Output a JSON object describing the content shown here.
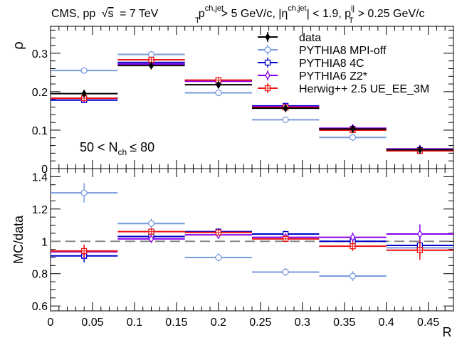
{
  "header": {
    "left": "CMS, pp",
    "sqrt_s": "s",
    "energy": "= 7 TeV",
    "cuts": {
      "pt_jet": "p",
      "pt_jet_sup": "ch,jet",
      "pt_jet_sub": "T",
      "pt_jet_cut": "> 5 GeV/c, |η",
      "eta_sup": "ch,jet",
      "eta_cut": "| < 1.9, p",
      "pt_ij_sup": "ij",
      "pt_ij_sub": "T",
      "pt_ij_cut": "> 0.25 GeV/c"
    }
  },
  "chart_data": [
    {
      "type": "scatter",
      "panel": "top",
      "ylabel": "ρ",
      "ylim": [
        0,
        0.37
      ],
      "yticks": [
        "0",
        "0.1",
        "0.2",
        "0.3"
      ],
      "annotation": {
        "prefix": "50 < N",
        "sub": "ch",
        "suffix": "≤ 80"
      },
      "x_bins": [
        [
          0,
          0.08
        ],
        [
          0.08,
          0.16
        ],
        [
          0.16,
          0.24
        ],
        [
          0.24,
          0.32
        ],
        [
          0.32,
          0.4
        ],
        [
          0.4,
          0.48
        ]
      ],
      "x": [
        0.04,
        0.12,
        0.2,
        0.28,
        0.36,
        0.44
      ],
      "legend_position": "top-right",
      "series": [
        {
          "name": "data",
          "color": "#000000",
          "marker": "diamond-filled",
          "values": [
            0.195,
            0.268,
            0.218,
            0.157,
            0.103,
            0.049
          ],
          "errors": [
            0.008,
            0.005,
            0.005,
            0.004,
            0.003,
            0.003
          ]
        },
        {
          "name": "PYTHIA8 MPI-off",
          "color": "#7799dd",
          "marker": "circle-open",
          "values": [
            0.255,
            0.297,
            0.197,
            0.127,
            0.081,
            0.047
          ],
          "errors": [
            0.003,
            0.003,
            0.003,
            0.002,
            0.002,
            0.002
          ]
        },
        {
          "name": "PYTHIA8 4C",
          "color": "#0000cc",
          "marker": "square-open",
          "values": [
            0.178,
            0.276,
            0.228,
            0.163,
            0.103,
            0.048
          ],
          "errors": [
            0.003,
            0.003,
            0.003,
            0.002,
            0.002,
            0.002
          ]
        },
        {
          "name": "PYTHIA6 Z2*",
          "color": "#8800ee",
          "marker": "diamond-open",
          "values": [
            0.183,
            0.272,
            0.227,
            0.161,
            0.105,
            0.051
          ],
          "errors": [
            0.003,
            0.003,
            0.003,
            0.002,
            0.002,
            0.002
          ]
        },
        {
          "name": "Herwig++ 2.5  UE_EE_3M",
          "color": "#ee1111",
          "marker": "square-cross",
          "values": [
            0.183,
            0.283,
            0.23,
            0.159,
            0.1,
            0.046
          ],
          "errors": [
            0.003,
            0.003,
            0.003,
            0.002,
            0.002,
            0.002
          ]
        }
      ]
    },
    {
      "type": "scatter",
      "panel": "bottom",
      "xlabel": "R",
      "ylabel": "MC/data",
      "xlim": [
        0,
        0.48
      ],
      "ylim": [
        0.57,
        1.45
      ],
      "xticks": [
        "0",
        "0.05",
        "0.1",
        "0.15",
        "0.2",
        "0.25",
        "0.3",
        "0.35",
        "0.4",
        "0.45"
      ],
      "yticks": [
        "0.6",
        "0.8",
        "1",
        "1.2",
        "1.4"
      ],
      "reference_line": 1,
      "x_bins": [
        [
          0,
          0.08
        ],
        [
          0.08,
          0.16
        ],
        [
          0.16,
          0.24
        ],
        [
          0.24,
          0.32
        ],
        [
          0.32,
          0.4
        ],
        [
          0.4,
          0.48
        ]
      ],
      "x": [
        0.04,
        0.12,
        0.2,
        0.28,
        0.36,
        0.44
      ],
      "series": [
        {
          "name": "PYTHIA8 MPI-off",
          "color": "#7799dd",
          "marker": "circle-open",
          "values": [
            1.3,
            1.11,
            0.9,
            0.81,
            0.785,
            0.96
          ],
          "errors": [
            0.06,
            0.03,
            0.025,
            0.025,
            0.03,
            0.06
          ]
        },
        {
          "name": "PYTHIA8 4C",
          "color": "#0000cc",
          "marker": "square-open",
          "values": [
            0.91,
            1.03,
            1.06,
            1.045,
            1.0,
            0.975
          ],
          "errors": [
            0.04,
            0.02,
            0.02,
            0.02,
            0.03,
            0.06
          ]
        },
        {
          "name": "PYTHIA6 Z2*",
          "color": "#8800ee",
          "marker": "diamond-open",
          "values": [
            0.935,
            1.015,
            1.04,
            1.025,
            1.025,
            1.045
          ],
          "errors": [
            0.04,
            0.02,
            0.02,
            0.02,
            0.03,
            0.06
          ]
        },
        {
          "name": "Herwig++ 2.5  UE_EE_3M",
          "color": "#ee1111",
          "marker": "square-cross",
          "values": [
            0.94,
            1.06,
            1.055,
            1.015,
            0.97,
            0.945
          ],
          "errors": [
            0.04,
            0.02,
            0.02,
            0.02,
            0.03,
            0.06
          ]
        }
      ]
    }
  ]
}
